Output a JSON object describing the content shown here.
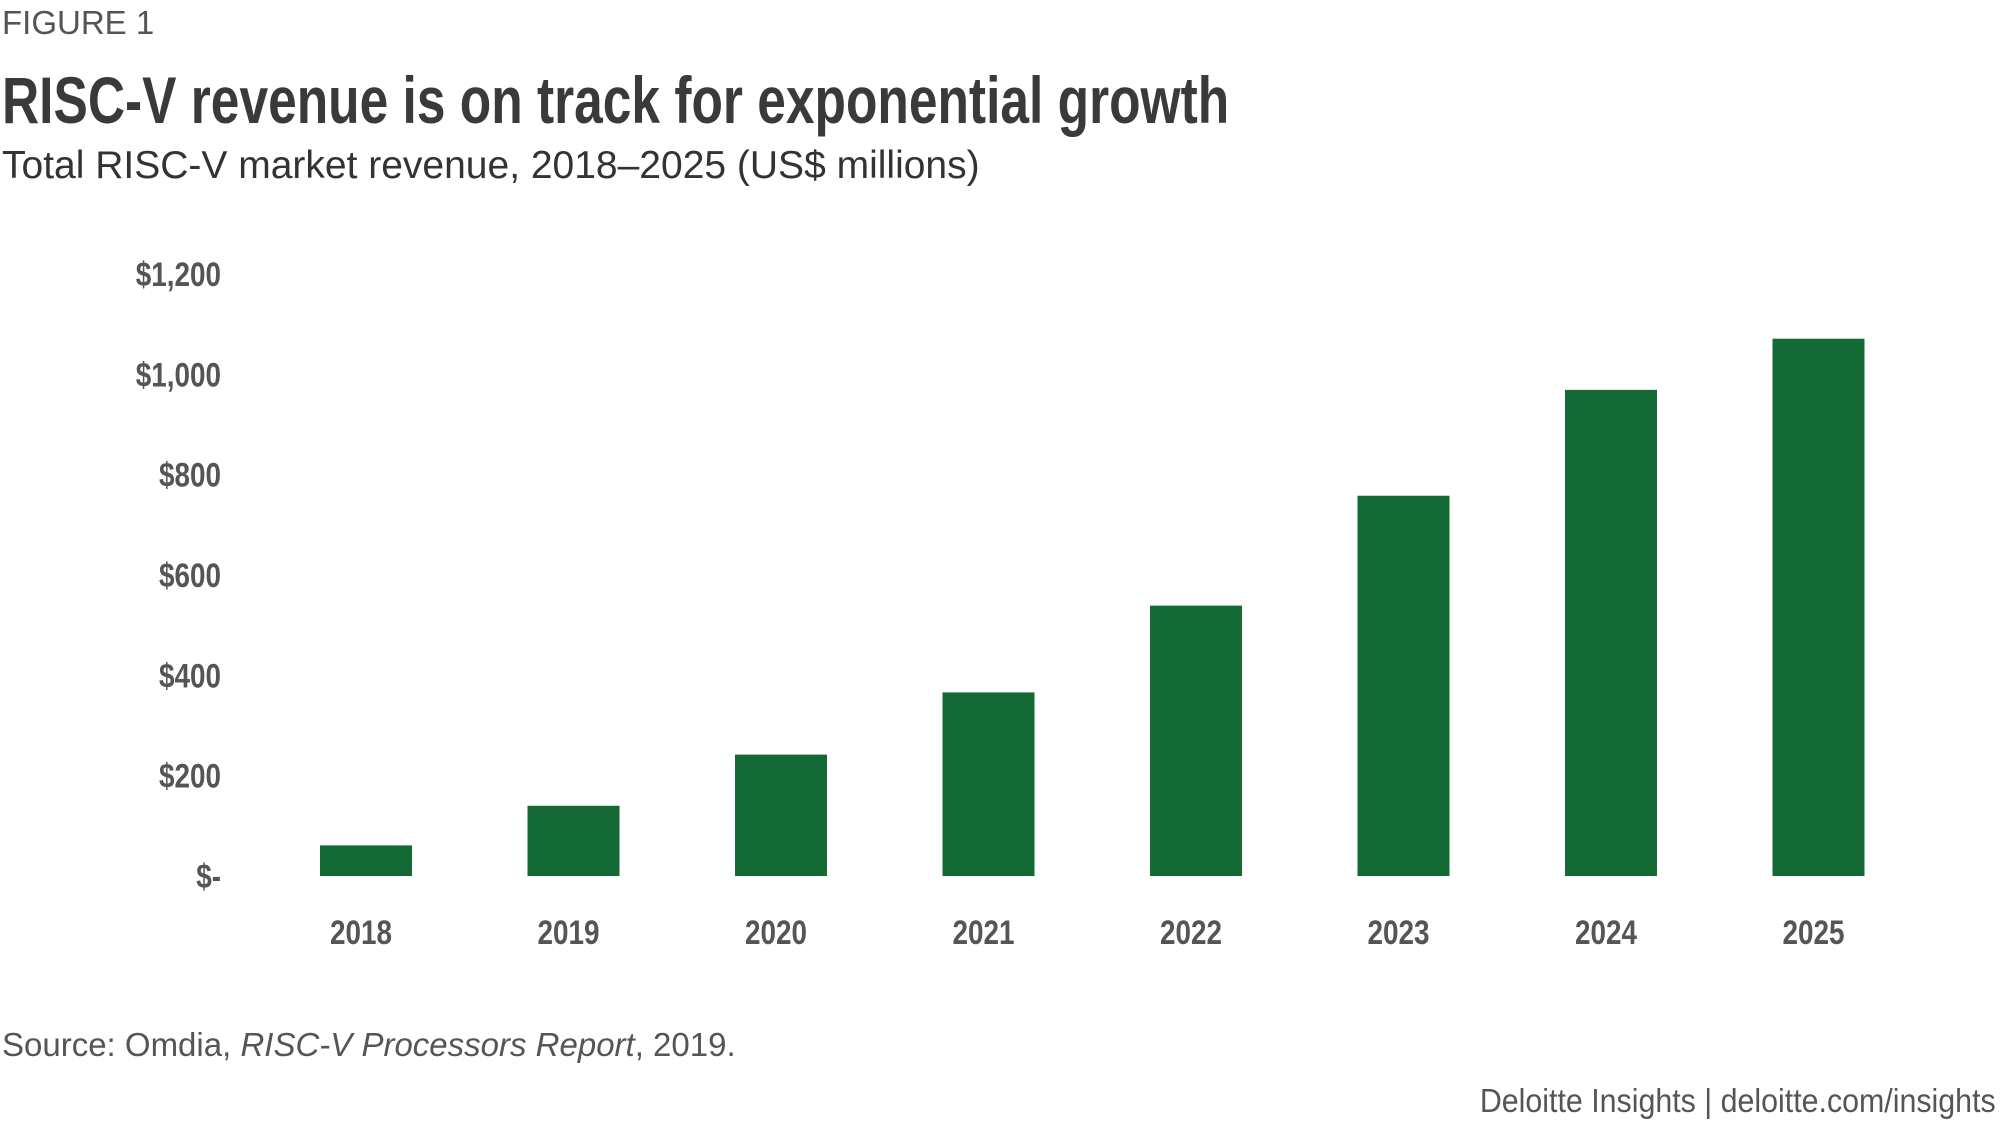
{
  "figure_label": "FIGURE 1",
  "title": "RISC-V revenue is on track for exponential growth",
  "subtitle": "Total RISC-V market revenue, 2018–2025 (US$ millions)",
  "source": {
    "prefix": "Source: Omdia, ",
    "italic": "RISC-V Processors Report",
    "suffix": ", 2019."
  },
  "footer": "Deloitte Insights | deloitte.com/insights",
  "colors": {
    "bar": "#136a35",
    "text": "#555555"
  },
  "chart_data": {
    "type": "bar",
    "title": "RISC-V revenue is on track for exponential growth",
    "subtitle": "Total RISC-V market revenue, 2018–2025 (US$ millions)",
    "categories": [
      "2018",
      "2019",
      "2020",
      "2021",
      "2022",
      "2023",
      "2024",
      "2025"
    ],
    "values": [
      61,
      140,
      242,
      366,
      539,
      758,
      969,
      1071
    ],
    "ylim": [
      0,
      1200
    ],
    "yticks": [
      0,
      200,
      400,
      600,
      800,
      1000,
      1200
    ],
    "ytick_labels": [
      "$-",
      "$200",
      "$400",
      "$600",
      "$800",
      "$1,000",
      "$1,200"
    ],
    "grid": false,
    "legend": "none"
  }
}
